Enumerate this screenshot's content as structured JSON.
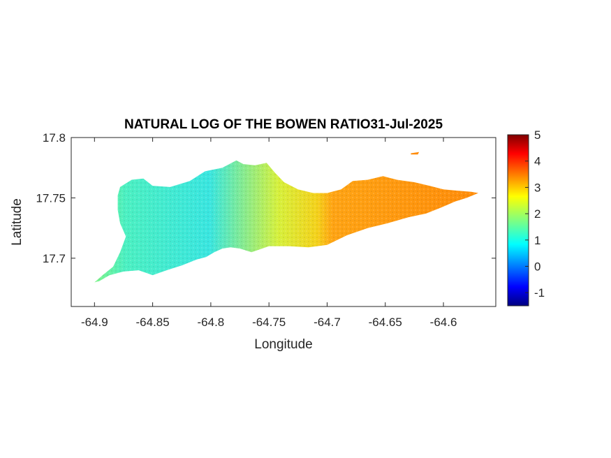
{
  "chart_data": {
    "type": "heatmap",
    "title": "NATURAL LOG OF THE BOWEN RATIO31-Jul-2025",
    "xlabel": "Longitude",
    "ylabel": "Latitude",
    "xlim": [
      -64.92,
      -64.555
    ],
    "ylim": [
      17.66,
      17.8
    ],
    "xticks": [
      -64.9,
      -64.85,
      -64.8,
      -64.75,
      -64.7,
      -64.65,
      -64.6
    ],
    "xtick_labels": [
      "-64.9",
      "-64.85",
      "-64.8",
      "-64.75",
      "-64.7",
      "-64.65",
      "-64.6"
    ],
    "yticks": [
      17.7,
      17.75,
      17.8
    ],
    "ytick_labels": [
      "17.7",
      "17.75",
      "17.8"
    ],
    "colormap": "jet",
    "colorbar": {
      "min": -1.5,
      "max": 5,
      "ticks": [
        -1,
        0,
        1,
        2,
        3,
        4,
        5
      ],
      "tick_labels": [
        "-1",
        "0",
        "1",
        "2",
        "3",
        "4",
        "5"
      ]
    },
    "field": {
      "description_values": "approximate ln(Bowen ratio) by region",
      "regions": [
        {
          "lon_range": [
            -64.9,
            -64.83
          ],
          "value": 1.6
        },
        {
          "lon_range": [
            -64.83,
            -64.76
          ],
          "value": 1.2
        },
        {
          "lon_range": [
            -64.76,
            -64.71
          ],
          "value": 2.5
        },
        {
          "lon_range": [
            -64.71,
            -64.57
          ],
          "value": 3.3
        }
      ]
    },
    "island_outline": [
      [
        -64.9,
        17.68
      ],
      [
        -64.893,
        17.686
      ],
      [
        -64.884,
        17.693
      ],
      [
        -64.878,
        17.705
      ],
      [
        -64.873,
        17.718
      ],
      [
        -64.878,
        17.729
      ],
      [
        -64.88,
        17.74
      ],
      [
        -64.88,
        17.752
      ],
      [
        -64.878,
        17.759
      ],
      [
        -64.868,
        17.765
      ],
      [
        -64.858,
        17.766
      ],
      [
        -64.85,
        17.76
      ],
      [
        -64.835,
        17.759
      ],
      [
        -64.818,
        17.764
      ],
      [
        -64.805,
        17.772
      ],
      [
        -64.79,
        17.775
      ],
      [
        -64.778,
        17.781
      ],
      [
        -64.772,
        17.778
      ],
      [
        -64.762,
        17.777
      ],
      [
        -64.752,
        17.779
      ],
      [
        -64.745,
        17.771
      ],
      [
        -64.737,
        17.763
      ],
      [
        -64.725,
        17.757
      ],
      [
        -64.712,
        17.754
      ],
      [
        -64.7,
        17.754
      ],
      [
        -64.688,
        17.757
      ],
      [
        -64.678,
        17.764
      ],
      [
        -64.665,
        17.765
      ],
      [
        -64.652,
        17.768
      ],
      [
        -64.64,
        17.765
      ],
      [
        -64.625,
        17.763
      ],
      [
        -64.612,
        17.76
      ],
      [
        -64.6,
        17.757
      ],
      [
        -64.588,
        17.756
      ],
      [
        -64.576,
        17.755
      ],
      [
        -64.57,
        17.754
      ],
      [
        -64.58,
        17.75
      ],
      [
        -64.59,
        17.747
      ],
      [
        -64.602,
        17.742
      ],
      [
        -64.615,
        17.737
      ],
      [
        -64.63,
        17.734
      ],
      [
        -64.648,
        17.729
      ],
      [
        -64.665,
        17.725
      ],
      [
        -64.683,
        17.719
      ],
      [
        -64.7,
        17.711
      ],
      [
        -64.716,
        17.709
      ],
      [
        -64.733,
        17.71
      ],
      [
        -64.75,
        17.71
      ],
      [
        -64.765,
        17.705
      ],
      [
        -64.775,
        17.708
      ],
      [
        -64.783,
        17.709
      ],
      [
        -64.79,
        17.708
      ],
      [
        -64.797,
        17.705
      ],
      [
        -64.804,
        17.701
      ],
      [
        -64.812,
        17.699
      ],
      [
        -64.825,
        17.694
      ],
      [
        -64.838,
        17.69
      ],
      [
        -64.85,
        17.686
      ],
      [
        -64.862,
        17.69
      ],
      [
        -64.875,
        17.689
      ],
      [
        -64.887,
        17.686
      ],
      [
        -64.896,
        17.681
      ]
    ],
    "islet": [
      [
        -64.628,
        17.787
      ],
      [
        -64.621,
        17.788
      ],
      [
        -64.622,
        17.786
      ],
      [
        -64.628,
        17.786
      ]
    ],
    "bay_indent": [
      [
        -64.76,
        17.706
      ],
      [
        -64.745,
        17.707
      ],
      [
        -64.74,
        17.711
      ]
    ]
  }
}
